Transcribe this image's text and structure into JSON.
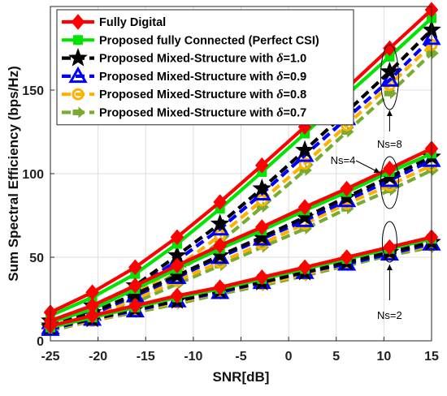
{
  "chart_data": {
    "type": "line",
    "xlabel": "SNR[dB]",
    "ylabel": "Sum Spectral Efficiency (bps/Hz)",
    "xlim": [
      -25,
      15
    ],
    "ylim": [
      0,
      200
    ],
    "xticks": [
      -25,
      -20,
      -15,
      -10,
      -5,
      0,
      5,
      10,
      15
    ],
    "xtick_labels": [
      "-25",
      "-20",
      "-15",
      "-10",
      "-5",
      "0",
      "5",
      "10",
      "15"
    ],
    "yticks": [
      0,
      50,
      100,
      150
    ],
    "ytick_labels": [
      "0",
      "50",
      "100",
      "150"
    ],
    "grid": true,
    "legend_position": "top-left",
    "x": [
      -25,
      -20.6,
      -16.1,
      -11.7,
      -7.2,
      -2.8,
      1.7,
      6.1,
      10.6,
      15
    ],
    "groups": [
      {
        "label": "Ns=8",
        "series": [
          {
            "key": "fd",
            "values": [
              17,
              29,
              44,
              62,
              83,
              105,
              128,
              151,
              175,
              198
            ]
          },
          {
            "key": "fc",
            "values": [
              15,
              26,
              40,
              58,
              79,
              101,
              124,
              147,
              170,
              193
            ]
          },
          {
            "key": "d10",
            "values": [
              12,
              21,
              33,
              51,
              70,
              91,
              114,
              137,
              161,
              186
            ]
          },
          {
            "key": "d09",
            "values": [
              11,
              20,
              31,
              48,
              67,
              88,
              111,
              133,
              156,
              181
            ]
          },
          {
            "key": "d08",
            "values": [
              9,
              17,
              28,
              44,
              63,
              84,
              106,
              129,
              153,
              177
            ]
          },
          {
            "key": "d07",
            "values": [
              8,
              15,
              25,
              41,
              59,
              80,
              102,
              125,
              148,
              172
            ]
          }
        ]
      },
      {
        "label": "Ns=4",
        "series": [
          {
            "key": "fd",
            "values": [
              12,
              21,
              33,
              45,
              57,
              68,
              80,
              91,
              103,
              115
            ]
          },
          {
            "key": "fc",
            "values": [
              11,
              19,
              31,
              43,
              55,
              66,
              78,
              89,
              101,
              112
            ]
          },
          {
            "key": "d10",
            "values": [
              9,
              17,
              28,
              39,
              51,
              62,
              74,
              86,
              98,
              110
            ]
          },
          {
            "key": "d09",
            "values": [
              8,
              16,
              27,
              38,
              50,
              61,
              72,
              84,
              96,
              108
            ]
          },
          {
            "key": "d08",
            "values": [
              8,
              15,
              25,
              36,
              47,
              58,
              70,
              82,
              93,
              105
            ]
          },
          {
            "key": "d07",
            "values": [
              7,
              13,
              23,
              34,
              45,
              56,
              67,
              79,
              90,
              102
            ]
          }
        ]
      },
      {
        "label": "Ns=2",
        "series": [
          {
            "key": "fd",
            "values": [
              9,
              15,
              21,
              27,
              32,
              38,
              44,
              50,
              56,
              62
            ]
          },
          {
            "key": "fc",
            "values": [
              8,
              14,
              20,
              26,
              31,
              37,
              43,
              49,
              55,
              61
            ]
          },
          {
            "key": "d10",
            "values": [
              8,
              13,
              19,
              24,
              30,
              35,
              41,
              47,
              53,
              59
            ]
          },
          {
            "key": "d09",
            "values": [
              7,
              13,
              18,
              24,
              29,
              35,
              41,
              46,
              52,
              58
            ]
          },
          {
            "key": "d08",
            "values": [
              7,
              12,
              18,
              23,
              29,
              34,
              40,
              46,
              52,
              57
            ]
          },
          {
            "key": "d07",
            "values": [
              6,
              12,
              17,
              22,
              28,
              33,
              39,
              45,
              51,
              56
            ]
          }
        ]
      }
    ],
    "legend": [
      {
        "key": "fd",
        "prefix": "Fully Digital",
        "delta": ""
      },
      {
        "key": "fc",
        "prefix": "Proposed fully Connected (Perfect CSI)",
        "delta": ""
      },
      {
        "key": "d10",
        "prefix": "Proposed Mixed-Structure with ",
        "delta": "=1.0"
      },
      {
        "key": "d09",
        "prefix": "Proposed Mixed-Structure with ",
        "delta": "=0.9"
      },
      {
        "key": "d08",
        "prefix": "Proposed Mixed-Structure with ",
        "delta": "=0.8"
      },
      {
        "key": "d07",
        "prefix": "Proposed Mixed-Structure with ",
        "delta": "=0.7"
      }
    ],
    "delta_symbol": "δ",
    "styles": {
      "fd": {
        "color": "#ff0000",
        "marker": "diamond",
        "dashed": false
      },
      "fc": {
        "color": "#00e400",
        "marker": "square",
        "dashed": false
      },
      "d10": {
        "color": "#000000",
        "marker": "star",
        "dashed": true
      },
      "d09": {
        "color": "#0000ff",
        "marker": "triangle",
        "dashed": true
      },
      "d08": {
        "color": "#ffb000",
        "marker": "circle",
        "dashed": true
      },
      "d07": {
        "color": "#77ac30",
        "marker": "arrow",
        "dashed": true
      }
    },
    "annotations": [
      {
        "key": "ns8",
        "text": "Ns=8"
      },
      {
        "key": "ns4",
        "text": "Ns=4"
      },
      {
        "key": "ns2",
        "text": "Ns=2"
      }
    ]
  }
}
